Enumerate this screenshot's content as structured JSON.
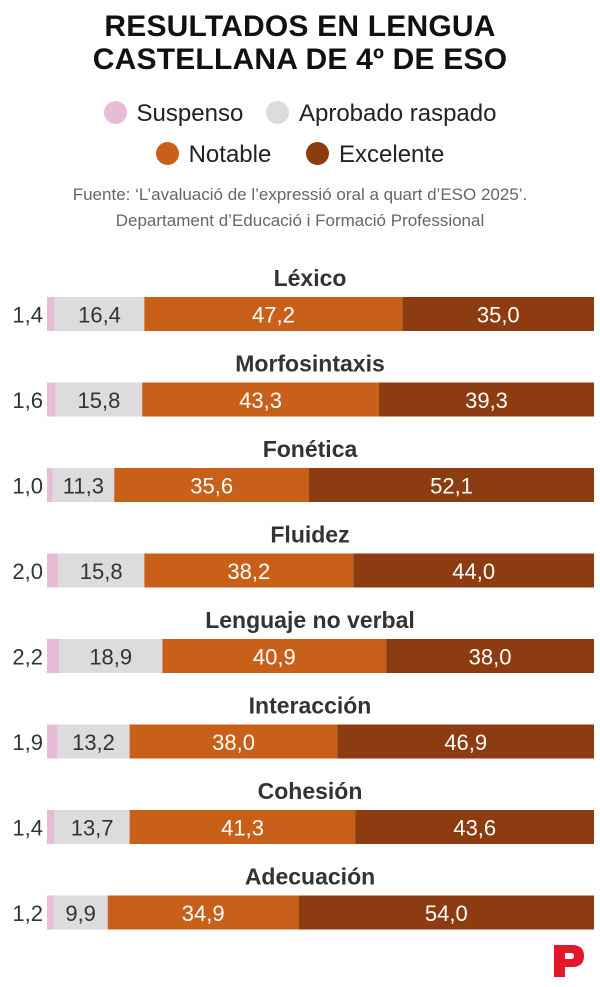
{
  "title": {
    "line1": "RESULTADOS EN LENGUA",
    "line2": "CASTELLANA DE 4º DE ESO"
  },
  "legend": [
    {
      "label": "Suspenso",
      "color": "#e8bcd7"
    },
    {
      "label": "Aprobado raspado",
      "color": "#dcdbde"
    },
    {
      "label": "Notable",
      "color": "#c9601a"
    },
    {
      "label": "Excelente",
      "color": "#8c3c10"
    }
  ],
  "source": {
    "line1": "Fuente: ‘L’avaluació de l’expressió oral a quart d’ESO 2025’.",
    "line2": "Departament d’Educació i Formació Professional"
  },
  "logo": {
    "name": "periodico-logo-icon",
    "color": "#e5172a"
  },
  "chart_data": {
    "type": "bar",
    "orientation": "horizontal",
    "stacked": true,
    "unit": "%",
    "xlim": [
      0,
      100
    ],
    "categories": [
      "Léxico",
      "Morfosintaxis",
      "Fonética",
      "Fluidez",
      "Lenguaje no verbal",
      "Interacción",
      "Cohesión",
      "Adecuación"
    ],
    "series": [
      {
        "name": "Suspenso",
        "color": "#e8bcd7",
        "values": [
          1.4,
          1.6,
          1.0,
          2.0,
          2.2,
          1.9,
          1.4,
          1.2
        ],
        "labels": [
          "1,4",
          "1,6",
          "1,0",
          "2,0",
          "2,2",
          "1,9",
          "1,4",
          "1,2"
        ]
      },
      {
        "name": "Aprobado raspado",
        "color": "#dcdbde",
        "values": [
          16.4,
          15.8,
          11.3,
          15.8,
          18.9,
          13.2,
          13.7,
          9.9
        ],
        "labels": [
          "16,4",
          "15,8",
          "11,3",
          "15,8",
          "18,9",
          "13,2",
          "13,7",
          "9,9"
        ]
      },
      {
        "name": "Notable",
        "color": "#c9601a",
        "values": [
          47.2,
          43.3,
          35.6,
          38.2,
          40.9,
          38.0,
          41.3,
          34.9
        ],
        "labels": [
          "47,2",
          "43,3",
          "35,6",
          "38,2",
          "40,9",
          "38,0",
          "41,3",
          "34,9"
        ]
      },
      {
        "name": "Excelente",
        "color": "#8c3c10",
        "values": [
          35.0,
          39.3,
          52.1,
          44.0,
          38.0,
          46.9,
          43.6,
          54.0
        ],
        "labels": [
          "35,0",
          "39,3",
          "52,1",
          "44,0",
          "38,0",
          "46,9",
          "43,6",
          "54,0"
        ]
      }
    ]
  }
}
